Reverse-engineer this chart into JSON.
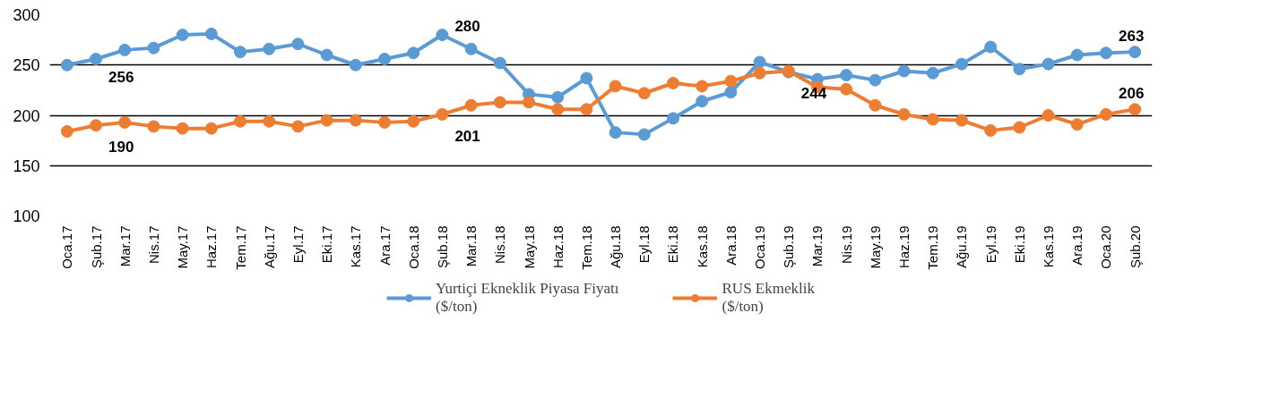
{
  "chart_data": {
    "type": "line",
    "categories": [
      "Oca.17",
      "Şub.17",
      "Mar.17",
      "Nis.17",
      "May.17",
      "Haz.17",
      "Tem.17",
      "Ağu.17",
      "Eyl.17",
      "Eki.17",
      "Kas.17",
      "Ara.17",
      "Oca.18",
      "Şub.18",
      "Mar.18",
      "Nis.18",
      "May.18",
      "Haz.18",
      "Tem.18",
      "Ağu.18",
      "Eyl.18",
      "Eki.18",
      "Kas.18",
      "Ara.18",
      "Oca.19",
      "Şub.19",
      "Mar.19",
      "Nis.19",
      "May.19",
      "Haz.19",
      "Tem.19",
      "Ağu.19",
      "Eyl.19",
      "Eki.19",
      "Kas.19",
      "Ara.19",
      "Oca.20",
      "Şub.20"
    ],
    "series": [
      {
        "name": "Yurtiçi Ekneklik Piyasa Fiyatı\n($/ton)",
        "color": "#5b9bd5",
        "values": [
          250,
          256,
          265,
          267,
          280,
          281,
          263,
          266,
          271,
          260,
          250,
          256,
          262,
          280,
          266,
          252,
          221,
          218,
          237,
          183,
          181,
          197,
          214,
          223,
          253,
          243,
          236,
          240,
          235,
          244,
          242,
          251,
          268,
          246,
          251,
          260,
          262,
          263
        ],
        "value_labels": [
          null,
          "256",
          null,
          null,
          null,
          null,
          null,
          null,
          null,
          null,
          null,
          null,
          null,
          "280",
          null,
          null,
          null,
          null,
          null,
          null,
          null,
          null,
          null,
          null,
          null,
          null,
          null,
          null,
          null,
          null,
          null,
          null,
          null,
          null,
          null,
          null,
          null,
          "263"
        ]
      },
      {
        "name": "RUS Ekmeklik\n($/ton)",
        "color": "#ed7d31",
        "values": [
          184,
          190,
          193,
          189,
          187,
          187,
          194,
          194,
          189,
          195,
          195,
          193,
          194,
          201,
          210,
          213,
          213,
          206,
          206,
          229,
          222,
          232,
          229,
          234,
          242,
          244,
          228,
          226,
          210,
          201,
          196,
          195,
          185,
          188,
          200,
          191,
          201,
          206
        ],
        "value_labels": [
          null,
          "190",
          null,
          null,
          null,
          null,
          null,
          null,
          null,
          null,
          null,
          null,
          null,
          "201",
          null,
          null,
          null,
          null,
          null,
          null,
          null,
          null,
          null,
          null,
          null,
          "244",
          null,
          null,
          null,
          null,
          null,
          null,
          null,
          null,
          null,
          null,
          null,
          "206"
        ]
      }
    ],
    "ylim": [
      100,
      300
    ],
    "yticks": [
      100,
      150,
      200,
      250,
      300
    ],
    "grid": "y",
    "legend": "bottom",
    "marker": "circle",
    "line_style": "solid"
  }
}
